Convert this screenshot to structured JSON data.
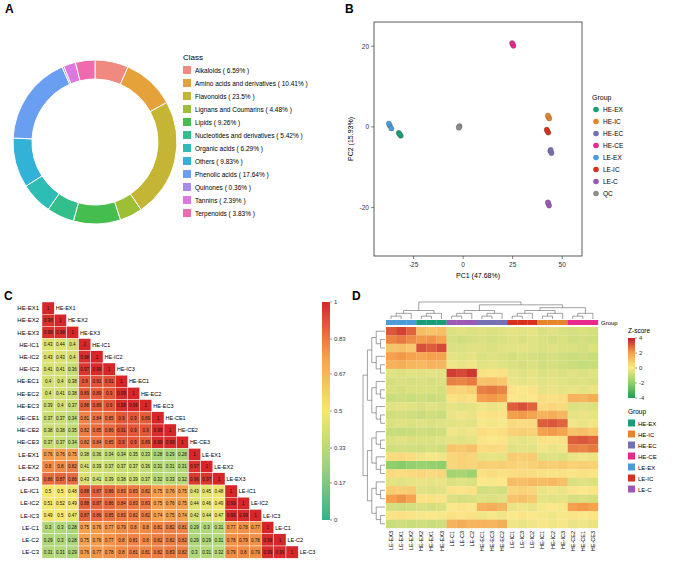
{
  "chart_data": [
    {
      "type": "donut",
      "panel": "A",
      "legend_title": "Class",
      "categories": [
        "Alkaloids ( 6.59% )",
        "Amino acids and derivatives ( 10.41% )",
        "Flavonoids ( 23.5% )",
        "Lignans and Coumarins ( 4.48% )",
        "Lipids ( 9.26% )",
        "Nucleotides and derivatives ( 5.42% )",
        "Organic acids ( 6.29% )",
        "Others ( 9.83% )",
        "Phenolic acids ( 17.64% )",
        "Quinones ( 0.36% )",
        "Tannins ( 2.39% )",
        "Terpenoids ( 3.83% )"
      ],
      "values": [
        6.59,
        10.41,
        23.5,
        4.48,
        9.26,
        5.42,
        6.29,
        9.83,
        17.64,
        0.36,
        2.39,
        3.83
      ],
      "colors": [
        "#f08a80",
        "#e5a13a",
        "#c4b534",
        "#9cbf35",
        "#45bd4f",
        "#33bf8c",
        "#2ebdb5",
        "#33b2d8",
        "#6a9ef0",
        "#a98af0",
        "#de78e0",
        "#f06aae"
      ],
      "legend": "right"
    },
    {
      "type": "scatter",
      "panel": "B",
      "x_label": "PC1 (47.68%)",
      "y_label": "PC2 (15.93%)",
      "legend_title": "Group",
      "xlim": [
        -45,
        60
      ],
      "xticks": [
        -25,
        0,
        25,
        50
      ],
      "ylim": [
        -32,
        26
      ],
      "yticks": [
        -20,
        0,
        20
      ],
      "grid": false,
      "legend": "right",
      "series": [
        {
          "name": "HE-EX",
          "color": "#1b9e77",
          "x": [
            -32.5,
            -31.5,
            -32
          ],
          "values": [
            -1.5,
            -2.2,
            -1.8
          ]
        },
        {
          "name": "HE-IC",
          "color": "#e6852b",
          "x": [
            43,
            43.5,
            42.8
          ],
          "values": [
            2.5,
            2.1,
            2.8
          ]
        },
        {
          "name": "HE-EC",
          "color": "#7570b3",
          "x": [
            44,
            44.6,
            44.2
          ],
          "values": [
            -6,
            -6.5,
            -5.7
          ]
        },
        {
          "name": "HE-CE",
          "color": "#e7298a",
          "x": [
            25,
            25.4,
            24.7
          ],
          "values": [
            20.5,
            20.1,
            20.8
          ]
        },
        {
          "name": "LE-EX",
          "color": "#4d9bd6",
          "x": [
            -37,
            -36.2,
            -37.5
          ],
          "values": [
            0.3,
            -0.4,
            0.8
          ]
        },
        {
          "name": "LE-IC",
          "color": "#d7301f",
          "x": [
            42.5,
            43,
            42.2
          ],
          "values": [
            -1,
            -1.4,
            -0.7
          ]
        },
        {
          "name": "LE-C",
          "color": "#9b59b6",
          "x": [
            43,
            43.4,
            42.8
          ],
          "values": [
            -19,
            -19.5,
            -18.7
          ]
        },
        {
          "name": "QC",
          "color": "#8c8c8c",
          "x": [
            -2,
            -1.8,
            -2.2
          ],
          "values": [
            0,
            0.2,
            -0.2
          ]
        }
      ]
    },
    {
      "type": "heatmap",
      "panel": "C",
      "data_labels": true,
      "labels": [
        "HE-EX1",
        "HE-EX2",
        "HE-EX3",
        "HE-IC1",
        "HE-IC2",
        "HE-IC3",
        "HE-EC1",
        "HE-EC2",
        "HE-EC3",
        "HE-CE1",
        "HE-CE2",
        "HE-CE3",
        "LE-EX1",
        "LE-EX2",
        "LE-EX3",
        "LE-IC1",
        "LE-IC2",
        "LE-IC3",
        "LE-C1",
        "LE-C2",
        "LE-C3"
      ],
      "cells": [
        [
          1
        ],
        [
          0.98,
          1
        ],
        [
          0.98,
          0.98,
          1
        ],
        [
          0.43,
          0.44,
          0.4,
          1
        ],
        [
          0.43,
          0.43,
          0.4,
          0.98,
          1
        ],
        [
          0.41,
          0.41,
          0.36,
          0.97,
          0.99,
          1
        ],
        [
          0.4,
          0.4,
          0.38,
          0.9,
          0.91,
          0.91,
          1
        ],
        [
          0.4,
          0.41,
          0.38,
          0.89,
          0.89,
          0.9,
          0.99,
          1
        ],
        [
          0.39,
          0.4,
          0.37,
          0.88,
          0.89,
          0.9,
          0.99,
          0.99,
          1
        ],
        [
          0.37,
          0.37,
          0.34,
          0.81,
          0.84,
          0.85,
          0.9,
          0.9,
          0.89,
          1
        ],
        [
          0.38,
          0.38,
          0.35,
          0.82,
          0.85,
          0.86,
          0.91,
          0.9,
          0.9,
          0.99,
          1
        ],
        [
          0.37,
          0.37,
          0.34,
          0.82,
          0.84,
          0.85,
          0.9,
          0.9,
          0.89,
          0.99,
          0.99,
          1
        ],
        [
          0.76,
          0.76,
          0.75,
          0.38,
          0.36,
          0.34,
          0.34,
          0.35,
          0.33,
          0.28,
          0.29,
          0.28,
          1
        ],
        [
          0.8,
          0.8,
          0.82,
          0.41,
          0.39,
          0.37,
          0.37,
          0.37,
          0.36,
          0.31,
          0.31,
          0.31,
          0.97,
          1
        ],
        [
          0.86,
          0.87,
          0.86,
          0.43,
          0.41,
          0.39,
          0.38,
          0.39,
          0.37,
          0.32,
          0.33,
          0.32,
          0.96,
          0.97,
          1
        ],
        [
          0.5,
          0.5,
          0.48,
          0.88,
          0.87,
          0.86,
          0.83,
          0.83,
          0.82,
          0.75,
          0.76,
          0.75,
          0.43,
          0.45,
          0.48,
          1
        ],
        [
          0.51,
          0.52,
          0.49,
          0.88,
          0.87,
          0.86,
          0.84,
          0.83,
          0.83,
          0.75,
          0.76,
          0.75,
          0.44,
          0.46,
          0.49,
          0.99,
          1
        ],
        [
          0.49,
          0.5,
          0.47,
          0.87,
          0.86,
          0.85,
          0.83,
          0.82,
          0.82,
          0.74,
          0.75,
          0.74,
          0.42,
          0.44,
          0.47,
          0.99,
          0.99,
          1
        ],
        [
          0.3,
          0.3,
          0.28,
          0.75,
          0.76,
          0.77,
          0.79,
          0.8,
          0.8,
          0.81,
          0.82,
          0.81,
          0.29,
          0.3,
          0.31,
          0.77,
          0.78,
          0.77,
          1
        ],
        [
          0.29,
          0.3,
          0.28,
          0.75,
          0.76,
          0.77,
          0.8,
          0.81,
          0.8,
          0.82,
          0.82,
          0.82,
          0.29,
          0.29,
          0.31,
          0.78,
          0.79,
          0.78,
          0.99,
          1
        ],
        [
          0.31,
          0.31,
          0.29,
          0.76,
          0.77,
          0.78,
          0.8,
          0.81,
          0.81,
          0.82,
          0.83,
          0.82,
          0.3,
          0.31,
          0.32,
          0.79,
          0.8,
          0.79,
          0.99,
          0.99,
          1
        ]
      ],
      "colorbar_range": [
        0,
        1
      ],
      "colorbar_ticks": [
        0,
        0.17,
        0.33,
        0.5,
        0.67,
        0.83,
        1
      ]
    },
    {
      "type": "heatmap",
      "panel": "D",
      "tick_labels": "x",
      "col_labels": [
        "LE-EX3",
        "LE-EX1",
        "LE-EX2",
        "HE-EX2",
        "HE-EX1",
        "HE-EX3",
        "LE-C1",
        "LE-C3",
        "LE-C2",
        "HE-EC1",
        "HE-EC3",
        "HE-EC2",
        "LE-IC1",
        "LE-IC3",
        "LE-IC2",
        "HE-IC1",
        "HE-IC2",
        "HE-IC3",
        "HE-CE2",
        "HE-CE1",
        "HE-CE3"
      ],
      "col_groups": [
        "LE-EX",
        "LE-EX",
        "LE-EX",
        "HE-EX",
        "HE-EX",
        "HE-EX",
        "LE-C",
        "LE-C",
        "LE-C",
        "HE-EC",
        "HE-EC",
        "HE-EC",
        "LE-IC",
        "LE-IC",
        "LE-IC",
        "HE-IC",
        "HE-IC",
        "HE-IC",
        "HE-CE",
        "HE-CE",
        "HE-CE"
      ],
      "group_label": "Group",
      "legend_title": "Group",
      "legend": "right",
      "groups": [
        {
          "name": "HE-EX",
          "color": "#1b9e77"
        },
        {
          "name": "HE-IC",
          "color": "#e6852b"
        },
        {
          "name": "HE-EC",
          "color": "#7570b3"
        },
        {
          "name": "HE-CE",
          "color": "#e7298a"
        },
        {
          "name": "LE-EX",
          "color": "#4d9bd6"
        },
        {
          "name": "LE-IC",
          "color": "#d7301f"
        },
        {
          "name": "LE-C",
          "color": "#9b59b6"
        }
      ],
      "colorbar_title": "Z-score",
      "colorbar_range": [
        -4,
        4
      ],
      "colorbar_ticks": [
        -4,
        -2,
        0,
        2,
        4
      ],
      "cells": [
        [
          3.1,
          3.4,
          2.9,
          1.2,
          1.0,
          1.1,
          -0.6,
          -0.5,
          -0.6,
          -0.5,
          -0.6,
          -0.5,
          -0.4,
          -0.5,
          -0.4,
          -0.6,
          -0.5,
          -0.6,
          -0.7,
          -0.6,
          -0.7
        ],
        [
          2.4,
          2.6,
          2.3,
          2.1,
          2.2,
          1.9,
          -0.7,
          -0.8,
          -0.7,
          -0.6,
          -0.7,
          -0.6,
          -0.5,
          -0.6,
          -0.5,
          -0.6,
          -0.7,
          -0.6,
          -0.8,
          -0.7,
          -0.8
        ],
        [
          1.0,
          1.1,
          0.9,
          3.2,
          3.0,
          3.3,
          -0.6,
          -0.6,
          -0.5,
          -0.5,
          -0.6,
          -0.5,
          -0.5,
          -0.4,
          -0.5,
          -0.6,
          -0.5,
          -0.6,
          -0.6,
          -0.7,
          -0.6
        ],
        [
          2.0,
          2.1,
          1.9,
          1.8,
          2.0,
          1.9,
          -0.4,
          -0.5,
          -0.4,
          -0.6,
          -0.5,
          -0.6,
          -0.7,
          -0.6,
          -0.7,
          -0.8,
          -0.7,
          -0.8,
          -0.9,
          -0.8,
          -0.9
        ],
        [
          1.5,
          1.6,
          1.4,
          1.3,
          1.5,
          1.4,
          -0.2,
          -0.3,
          -0.2,
          -0.5,
          -0.4,
          -0.5,
          -0.6,
          -0.7,
          -0.6,
          -0.8,
          -0.7,
          -0.8,
          -0.9,
          -1.0,
          -0.9
        ],
        [
          -0.5,
          -0.6,
          -0.5,
          -0.5,
          -0.4,
          -0.5,
          3.5,
          3.3,
          3.6,
          0.2,
          0.1,
          0.2,
          -0.4,
          -0.5,
          -0.4,
          -0.6,
          -0.5,
          -0.6,
          -0.5,
          -0.6,
          -0.5
        ],
        [
          -0.7,
          -0.6,
          -0.7,
          -0.6,
          -0.7,
          -0.6,
          2.5,
          2.4,
          2.6,
          1.0,
          1.1,
          0.9,
          -0.3,
          -0.4,
          -0.3,
          -0.5,
          -0.4,
          -0.5,
          -0.6,
          -0.5,
          -0.6
        ],
        [
          -0.6,
          -0.7,
          -0.6,
          -0.6,
          -0.6,
          -0.7,
          0.6,
          0.5,
          0.7,
          2.5,
          2.6,
          2.4,
          0.1,
          0.0,
          0.1,
          -0.4,
          -0.3,
          -0.4,
          -0.3,
          -0.4,
          -0.3
        ],
        [
          -0.9,
          -0.8,
          -0.9,
          -0.8,
          -0.9,
          -0.8,
          0.2,
          0.3,
          0.2,
          2.0,
          2.1,
          1.9,
          0.0,
          -0.1,
          0.0,
          0.3,
          0.2,
          0.3,
          1.5,
          1.4,
          1.6
        ],
        [
          -0.5,
          -0.4,
          -0.5,
          -0.6,
          -0.5,
          -0.6,
          -0.4,
          -0.5,
          -0.4,
          -0.2,
          -0.3,
          -0.2,
          3.0,
          3.2,
          2.9,
          0.4,
          0.5,
          0.4,
          -0.6,
          -0.5,
          -0.6
        ],
        [
          -0.8,
          -0.7,
          -0.8,
          -0.9,
          -0.8,
          -0.9,
          -0.3,
          -0.2,
          -0.3,
          0.1,
          0.2,
          0.1,
          2.0,
          2.1,
          1.9,
          1.5,
          1.6,
          1.4,
          -0.4,
          -0.3,
          -0.4
        ],
        [
          -0.6,
          -0.5,
          -0.6,
          -0.5,
          -0.6,
          -0.5,
          -0.5,
          -0.4,
          -0.5,
          -0.1,
          -0.2,
          -0.1,
          0.4,
          0.3,
          0.4,
          3.0,
          3.1,
          2.9,
          -0.2,
          -0.3,
          -0.2
        ],
        [
          -0.9,
          -1.0,
          -0.9,
          -0.8,
          -0.9,
          -0.8,
          -0.2,
          -0.3,
          -0.2,
          0.3,
          0.2,
          0.3,
          0.6,
          0.7,
          0.6,
          2.0,
          2.1,
          1.9,
          1.0,
          1.1,
          0.9
        ],
        [
          -0.6,
          -0.5,
          -0.6,
          -0.6,
          -0.6,
          -0.5,
          -0.4,
          -0.5,
          -0.4,
          0.1,
          0.0,
          0.1,
          -0.3,
          -0.4,
          -0.3,
          0.2,
          0.1,
          0.2,
          3.0,
          3.1,
          2.9
        ],
        [
          -0.8,
          -0.7,
          -0.8,
          -0.8,
          -0.7,
          -0.8,
          1.0,
          0.9,
          1.1,
          0.3,
          0.4,
          0.3,
          -0.5,
          -0.4,
          -0.5,
          -0.2,
          -0.3,
          -0.2,
          2.5,
          2.4,
          2.6
        ],
        [
          0.3,
          0.4,
          0.3,
          -0.2,
          -0.1,
          -0.2,
          0.5,
          0.6,
          0.5,
          -0.4,
          -0.3,
          -0.4,
          0.8,
          0.7,
          0.8,
          -0.6,
          -0.5,
          -0.6,
          -0.3,
          -0.2,
          -0.3
        ],
        [
          -2.0,
          -2.1,
          -1.9,
          -1.8,
          -1.9,
          -2.0,
          0.5,
          0.6,
          0.5,
          0.7,
          0.6,
          0.7,
          0.6,
          0.5,
          0.6,
          0.8,
          0.7,
          0.8,
          0.6,
          0.7,
          0.6
        ],
        [
          0.4,
          0.3,
          0.4,
          0.5,
          0.4,
          0.5,
          -1.6,
          -1.5,
          -1.7,
          0.2,
          0.3,
          0.2,
          0.3,
          0.4,
          0.3,
          0.2,
          0.1,
          0.2,
          0.1,
          0.2,
          0.1
        ],
        [
          -0.4,
          -0.5,
          -0.4,
          -0.3,
          -0.4,
          -0.3,
          -0.6,
          -0.5,
          -0.6,
          0.0,
          -0.1,
          0.0,
          1.2,
          1.1,
          1.3,
          1.2,
          1.3,
          1.1,
          -0.6,
          -0.5,
          -0.6
        ],
        [
          0.8,
          0.7,
          0.8,
          -0.5,
          -0.6,
          -0.5,
          0.2,
          0.1,
          0.2,
          -0.8,
          -0.7,
          -0.8,
          0.5,
          0.6,
          0.5,
          -0.3,
          -0.2,
          -0.3,
          0.1,
          0.0,
          0.1
        ],
        [
          2.0,
          2.2,
          1.9,
          0.1,
          0.2,
          0.1,
          -0.6,
          -0.7,
          -0.6,
          -0.5,
          -0.6,
          -0.5,
          1.0,
          1.1,
          0.9,
          -0.4,
          -0.5,
          -0.4,
          -0.7,
          -0.6,
          -0.7
        ],
        [
          -0.7,
          -0.8,
          -0.7,
          -0.6,
          -0.7,
          -0.6,
          0.0,
          0.1,
          0.0,
          1.5,
          1.6,
          1.4,
          -0.3,
          -0.2,
          -0.3,
          -0.1,
          0.0,
          -0.1,
          2.0,
          2.1,
          1.9
        ],
        [
          0.1,
          0.2,
          0.1,
          -0.1,
          0.0,
          -0.1,
          0.2,
          0.1,
          0.2,
          -0.2,
          -0.1,
          -0.2,
          0.0,
          0.1,
          0.0,
          -0.1,
          -0.2,
          -0.1,
          0.1,
          0.0,
          0.1
        ],
        [
          -0.9,
          -0.8,
          -0.9,
          -0.8,
          -0.9,
          -0.8,
          1.5,
          1.6,
          1.4,
          1.5,
          1.4,
          1.6,
          -0.2,
          -0.3,
          -0.2,
          -0.1,
          -0.2,
          -0.1,
          -0.3,
          -0.2,
          -0.3
        ]
      ]
    }
  ]
}
